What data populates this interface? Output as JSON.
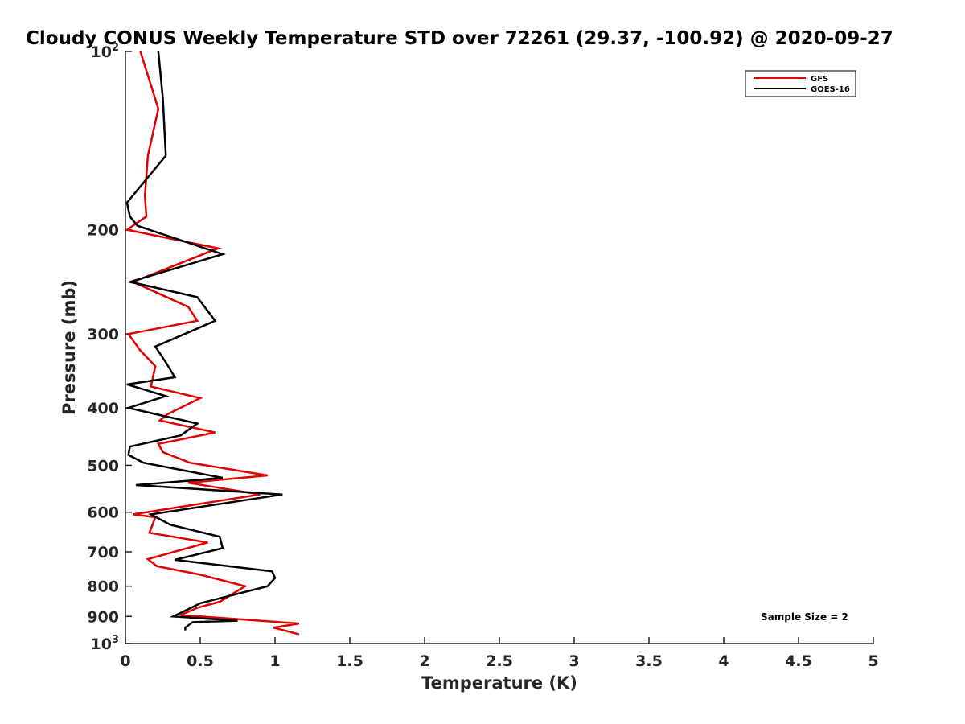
{
  "chart_data": {
    "type": "line",
    "title": "Cloudy CONUS Weekly Temperature STD over 72261 (29.37, -100.92) @ 2020-09-27",
    "xlabel": "Temperature (K)",
    "ylabel": "Pressure (mb)",
    "xlim": [
      0,
      5
    ],
    "ylim": [
      100,
      1000
    ],
    "yscale": "log",
    "y_reversed": true,
    "grid": false,
    "legend_position": "top-right",
    "x_ticks": [
      "0",
      "0.5",
      "1",
      "1.5",
      "2",
      "2.5",
      "3",
      "3.5",
      "4",
      "4.5",
      "5"
    ],
    "y_ticks": [
      {
        "value": 100,
        "base": "10",
        "exp": "2"
      },
      {
        "value": 200,
        "base": "200",
        "exp": ""
      },
      {
        "value": 300,
        "base": "300",
        "exp": ""
      },
      {
        "value": 400,
        "base": "400",
        "exp": ""
      },
      {
        "value": 500,
        "base": "500",
        "exp": ""
      },
      {
        "value": 600,
        "base": "600",
        "exp": ""
      },
      {
        "value": 700,
        "base": "700",
        "exp": ""
      },
      {
        "value": 800,
        "base": "800",
        "exp": ""
      },
      {
        "value": 900,
        "base": "900",
        "exp": ""
      },
      {
        "value": 1000,
        "base": "10",
        "exp": "3"
      }
    ],
    "annotation": "Sample Size = 2",
    "series": [
      {
        "name": "GFS",
        "color": "#e00000",
        "points": [
          [
            0.1,
            100
          ],
          [
            0.22,
            125
          ],
          [
            0.15,
            150
          ],
          [
            0.13,
            175
          ],
          [
            0.14,
            190
          ],
          [
            0.01,
            200
          ],
          [
            0.62,
            215
          ],
          [
            0.05,
            245
          ],
          [
            0.42,
            270
          ],
          [
            0.48,
            285
          ],
          [
            0.02,
            300
          ],
          [
            0.1,
            320
          ],
          [
            0.2,
            340
          ],
          [
            0.17,
            368
          ],
          [
            0.5,
            385
          ],
          [
            0.28,
            410
          ],
          [
            0.23,
            420
          ],
          [
            0.6,
            440
          ],
          [
            0.22,
            460
          ],
          [
            0.25,
            475
          ],
          [
            0.43,
            495
          ],
          [
            0.95,
            520
          ],
          [
            0.42,
            535
          ],
          [
            0.9,
            560
          ],
          [
            0.05,
            605
          ],
          [
            0.2,
            612
          ],
          [
            0.16,
            650
          ],
          [
            0.55,
            675
          ],
          [
            0.15,
            720
          ],
          [
            0.21,
            740
          ],
          [
            0.5,
            765
          ],
          [
            0.8,
            800
          ],
          [
            0.63,
            850
          ],
          [
            0.48,
            870
          ],
          [
            0.37,
            895
          ],
          [
            1.16,
            925
          ],
          [
            0.99,
            940
          ],
          [
            1.16,
            965
          ]
        ]
      },
      {
        "name": "GOES-16",
        "color": "#000000",
        "points": [
          [
            0.22,
            100
          ],
          [
            0.25,
            120
          ],
          [
            0.27,
            150
          ],
          [
            0.01,
            180
          ],
          [
            0.03,
            190
          ],
          [
            0.08,
            197
          ],
          [
            0.65,
            220
          ],
          [
            0.03,
            245
          ],
          [
            0.48,
            260
          ],
          [
            0.6,
            285
          ],
          [
            0.2,
            315
          ],
          [
            0.27,
            335
          ],
          [
            0.33,
            355
          ],
          [
            0.01,
            365
          ],
          [
            0.27,
            382
          ],
          [
            0.02,
            400
          ],
          [
            0.48,
            425
          ],
          [
            0.37,
            445
          ],
          [
            0.03,
            465
          ],
          [
            0.02,
            480
          ],
          [
            0.12,
            495
          ],
          [
            0.65,
            525
          ],
          [
            0.07,
            540
          ],
          [
            1.05,
            560
          ],
          [
            0.17,
            605
          ],
          [
            0.3,
            630
          ],
          [
            0.63,
            660
          ],
          [
            0.65,
            690
          ],
          [
            0.33,
            722
          ],
          [
            0.98,
            755
          ],
          [
            1.0,
            775
          ],
          [
            0.95,
            800
          ],
          [
            0.5,
            855
          ],
          [
            0.42,
            875
          ],
          [
            0.32,
            900
          ],
          [
            0.75,
            915
          ],
          [
            0.45,
            920
          ],
          [
            0.4,
            940
          ],
          [
            0.4,
            950
          ]
        ]
      }
    ]
  }
}
